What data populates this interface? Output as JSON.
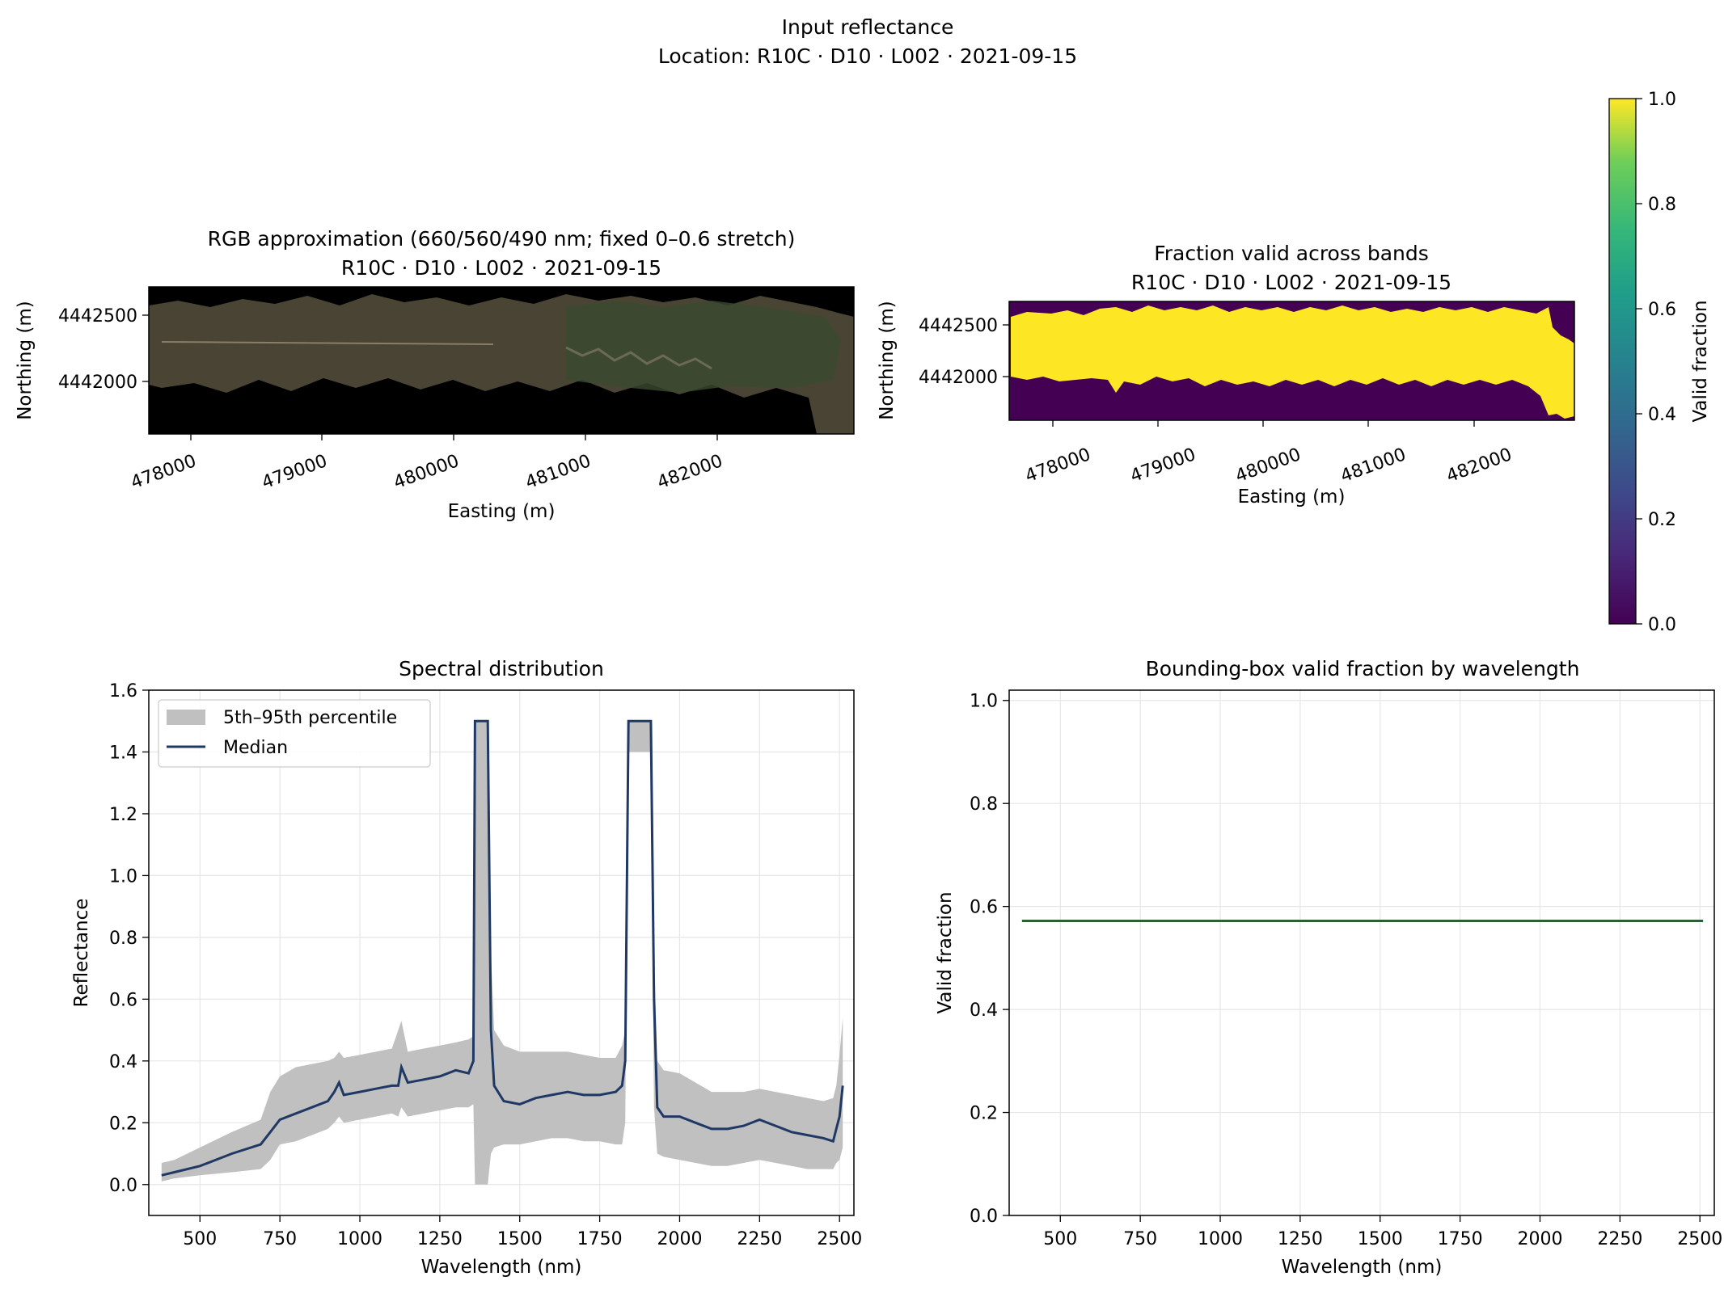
{
  "figure": {
    "title": "Input reflectance",
    "subtitle": "Location: R10C · D10 · L002 · 2021-09-15"
  },
  "panels": {
    "rgb": {
      "title": "RGB approximation (660/560/490 nm; fixed 0–0.6 stretch)",
      "subtitle": "R10C · D10 · L002 · 2021-09-15",
      "xlabel": "Easting (m)",
      "ylabel": "Northing (m)",
      "xticks": [
        "478000",
        "479000",
        "480000",
        "481000",
        "482000"
      ],
      "yticks": [
        "4442500",
        "4442000"
      ]
    },
    "valid_map": {
      "title": "Fraction valid across bands",
      "subtitle": "R10C · D10 · L002 · 2021-09-15",
      "xlabel": "Easting (m)",
      "ylabel": "Northing (m)",
      "xticks": [
        "478000",
        "479000",
        "480000",
        "481000",
        "482000"
      ],
      "yticks": [
        "4442500",
        "4442000"
      ]
    },
    "colorbar": {
      "label": "Valid fraction",
      "ticks": [
        "1.0",
        "0.8",
        "0.6",
        "0.4",
        "0.2",
        "0.0"
      ],
      "colormap": "viridis"
    }
  },
  "colors": {
    "median": "#1f3864",
    "band": "#c0c0c0",
    "valid_line": "#2e5e33",
    "yellow": "#fde725",
    "purple": "#440154"
  },
  "chart_data": [
    {
      "type": "image",
      "id": "rgb",
      "title": "RGB approximation (660/560/490 nm; fixed 0–0.6 stretch)",
      "subtitle": "R10C · D10 · L002 · 2021-09-15",
      "xlabel": "Easting (m)",
      "ylabel": "Northing (m)",
      "xlim": [
        477600,
        482950
      ],
      "ylim": [
        4441600,
        4442700
      ]
    },
    {
      "type": "heatmap",
      "id": "valid_map",
      "title": "Fraction valid across bands",
      "subtitle": "R10C · D10 · L002 · 2021-09-15",
      "xlabel": "Easting (m)",
      "ylabel": "Northing (m)",
      "xlim": [
        477600,
        482950
      ],
      "ylim": [
        4441600,
        4442700
      ],
      "colorbar": {
        "label": "Valid fraction",
        "range": [
          0,
          1
        ]
      }
    },
    {
      "type": "area",
      "id": "spectral",
      "title": "Spectral distribution",
      "xlabel": "Wavelength (nm)",
      "ylabel": "Reflectance",
      "xlim": [
        340,
        2545
      ],
      "ylim": [
        -0.1,
        1.6
      ],
      "xticks": [
        500,
        750,
        1000,
        1250,
        1500,
        1750,
        2000,
        2250,
        2500
      ],
      "yticks": [
        0.0,
        0.2,
        0.4,
        0.6,
        0.8,
        1.0,
        1.2,
        1.4,
        1.6
      ],
      "grid": true,
      "legend": {
        "position": "top-left",
        "band_label": "5th–95th percentile",
        "median_label": "Median"
      },
      "x": [
        380,
        420,
        500,
        600,
        690,
        720,
        750,
        800,
        850,
        900,
        920,
        935,
        950,
        1000,
        1050,
        1100,
        1120,
        1130,
        1150,
        1200,
        1250,
        1300,
        1340,
        1355,
        1360,
        1400,
        1410,
        1420,
        1450,
        1500,
        1550,
        1600,
        1650,
        1700,
        1750,
        1800,
        1820,
        1830,
        1840,
        1910,
        1920,
        1930,
        1950,
        2000,
        2050,
        2100,
        2150,
        2200,
        2250,
        2300,
        2350,
        2400,
        2450,
        2480,
        2490,
        2500,
        2510
      ],
      "series": [
        {
          "name": "Median",
          "values": [
            0.03,
            0.04,
            0.06,
            0.1,
            0.13,
            0.17,
            0.21,
            0.23,
            0.25,
            0.27,
            0.3,
            0.33,
            0.29,
            0.3,
            0.31,
            0.32,
            0.32,
            0.38,
            0.33,
            0.34,
            0.35,
            0.37,
            0.36,
            0.4,
            1.5,
            1.5,
            0.5,
            0.32,
            0.27,
            0.26,
            0.28,
            0.29,
            0.3,
            0.29,
            0.29,
            0.3,
            0.32,
            0.4,
            1.5,
            1.5,
            0.6,
            0.25,
            0.22,
            0.22,
            0.2,
            0.18,
            0.18,
            0.19,
            0.21,
            0.19,
            0.17,
            0.16,
            0.15,
            0.14,
            0.18,
            0.22,
            0.32
          ]
        },
        {
          "name": "95th",
          "values": [
            0.07,
            0.08,
            0.12,
            0.17,
            0.21,
            0.3,
            0.35,
            0.38,
            0.39,
            0.4,
            0.41,
            0.43,
            0.41,
            0.42,
            0.43,
            0.44,
            0.5,
            0.53,
            0.43,
            0.44,
            0.45,
            0.46,
            0.47,
            0.48,
            1.5,
            1.5,
            0.75,
            0.5,
            0.45,
            0.43,
            0.43,
            0.43,
            0.43,
            0.42,
            0.41,
            0.41,
            0.45,
            0.5,
            1.5,
            1.5,
            0.75,
            0.4,
            0.37,
            0.36,
            0.33,
            0.3,
            0.3,
            0.3,
            0.31,
            0.3,
            0.29,
            0.28,
            0.27,
            0.28,
            0.32,
            0.42,
            0.54
          ]
        },
        {
          "name": "5th",
          "values": [
            0.01,
            0.02,
            0.03,
            0.04,
            0.05,
            0.08,
            0.13,
            0.14,
            0.16,
            0.18,
            0.2,
            0.22,
            0.2,
            0.21,
            0.22,
            0.23,
            0.22,
            0.25,
            0.22,
            0.23,
            0.24,
            0.25,
            0.25,
            0.26,
            0.0,
            0.0,
            0.1,
            0.12,
            0.13,
            0.13,
            0.14,
            0.15,
            0.15,
            0.14,
            0.14,
            0.13,
            0.13,
            0.2,
            1.4,
            1.4,
            0.25,
            0.1,
            0.09,
            0.08,
            0.07,
            0.06,
            0.06,
            0.07,
            0.08,
            0.07,
            0.06,
            0.05,
            0.05,
            0.05,
            0.07,
            0.08,
            0.12
          ]
        }
      ]
    },
    {
      "type": "line",
      "id": "valid_by_wavelength",
      "title": "Bounding-box valid fraction by wavelength",
      "xlabel": "Wavelength (nm)",
      "ylabel": "Valid fraction",
      "xlim": [
        340,
        2545
      ],
      "ylim": [
        0.0,
        1.02
      ],
      "xticks": [
        500,
        750,
        1000,
        1250,
        1500,
        1750,
        2000,
        2250,
        2500
      ],
      "yticks": [
        0.0,
        0.2,
        0.4,
        0.6,
        0.8,
        1.0
      ],
      "grid": true,
      "x": [
        380,
        2510
      ],
      "series": [
        {
          "values": [
            0.572,
            0.572
          ]
        }
      ]
    }
  ]
}
